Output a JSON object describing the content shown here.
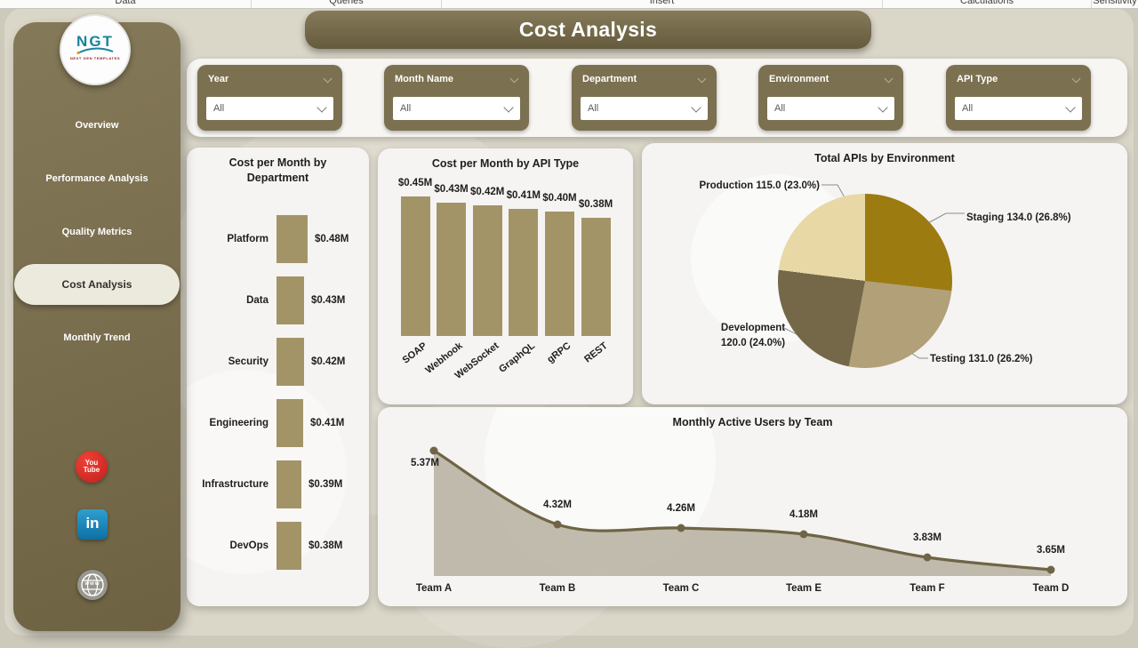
{
  "ribbon": {
    "tabs": [
      {
        "label": "Data"
      },
      {
        "label": "Queries"
      },
      {
        "label": "Insert"
      },
      {
        "label": "Calculations"
      },
      {
        "label": "Sensitivity"
      }
    ]
  },
  "logo": {
    "acronym": "NGT",
    "tagline": "NEXT GEN TEMPLATES"
  },
  "header": {
    "title": "Cost Analysis"
  },
  "sidebar": {
    "items": [
      {
        "label": "Overview",
        "active": false
      },
      {
        "label": "Performance Analysis",
        "active": false
      },
      {
        "label": "Quality Metrics",
        "active": false
      },
      {
        "label": "Cost Analysis",
        "active": true
      },
      {
        "label": "Monthly Trend",
        "active": false
      }
    ]
  },
  "icons": {
    "youtube_lines": [
      "You",
      "Tube"
    ],
    "linkedin_text": "in",
    "website_text": "www"
  },
  "filters": [
    {
      "label": "Year",
      "value": "All"
    },
    {
      "label": "Month Name",
      "value": "All"
    },
    {
      "label": "Department",
      "value": "All"
    },
    {
      "label": "Environment",
      "value": "All"
    },
    {
      "label": "API Type",
      "value": "All"
    }
  ],
  "chart_data": [
    {
      "type": "bar",
      "orientation": "horizontal-rows",
      "title": "Cost per Month by Department",
      "categories": [
        "Platform",
        "Data",
        "Security",
        "Engineering",
        "Infrastructure",
        "DevOps"
      ],
      "values": [
        0.48,
        0.43,
        0.42,
        0.41,
        0.39,
        0.38
      ],
      "value_labels": [
        "$0.48M",
        "$0.43M",
        "$0.42M",
        "$0.41M",
        "$0.39M",
        "$0.38M"
      ],
      "unit": "M USD",
      "bar_color": "#a39468"
    },
    {
      "type": "bar",
      "orientation": "vertical",
      "title": "Cost per Month by API Type",
      "categories": [
        "SOAP",
        "Webhook",
        "WebSocket",
        "GraphQL",
        "gRPC",
        "REST"
      ],
      "values": [
        0.45,
        0.43,
        0.42,
        0.41,
        0.4,
        0.38
      ],
      "value_labels": [
        "$0.45M",
        "$0.43M",
        "$0.42M",
        "$0.41M",
        "$0.40M",
        "$0.38M"
      ],
      "unit": "M USD",
      "bar_color": "#a39468"
    },
    {
      "type": "pie",
      "title": "Total APIs by Environment",
      "slices": [
        {
          "label": "Staging",
          "value": 134.0,
          "pct": 26.8,
          "text": "Staging 134.0 (26.8%)",
          "color": "#9c7b11"
        },
        {
          "label": "Testing",
          "value": 131.0,
          "pct": 26.2,
          "text": "Testing 131.0 (26.2%)",
          "color": "#b1a078"
        },
        {
          "label": "Development",
          "value": 120.0,
          "pct": 24.0,
          "text": "Development\n120.0 (24.0%)",
          "color": "#746849"
        },
        {
          "label": "Production",
          "value": 115.0,
          "pct": 23.0,
          "text": "Production 115.0 (23.0%)",
          "color": "#e8d8a6"
        }
      ]
    },
    {
      "type": "area",
      "title": "Monthly Active Users by Team",
      "categories": [
        "Team A",
        "Team B",
        "Team C",
        "Team E",
        "Team F",
        "Team D"
      ],
      "values": [
        5.37,
        4.32,
        4.26,
        4.18,
        3.83,
        3.65
      ],
      "value_labels": [
        "5.37M",
        "4.32M",
        "4.26M",
        "4.18M",
        "3.83M",
        "3.65M"
      ],
      "unit": "M users",
      "line_color": "#6f6546",
      "fill_color": "#b3ab9b"
    }
  ],
  "colors": {
    "page_bg": "#dad6c8",
    "sidebar": "#7a6f4e",
    "card_bg": "#f5f4f2",
    "accent_dark": "#6e6444",
    "active_pill": "#ece9dd"
  }
}
